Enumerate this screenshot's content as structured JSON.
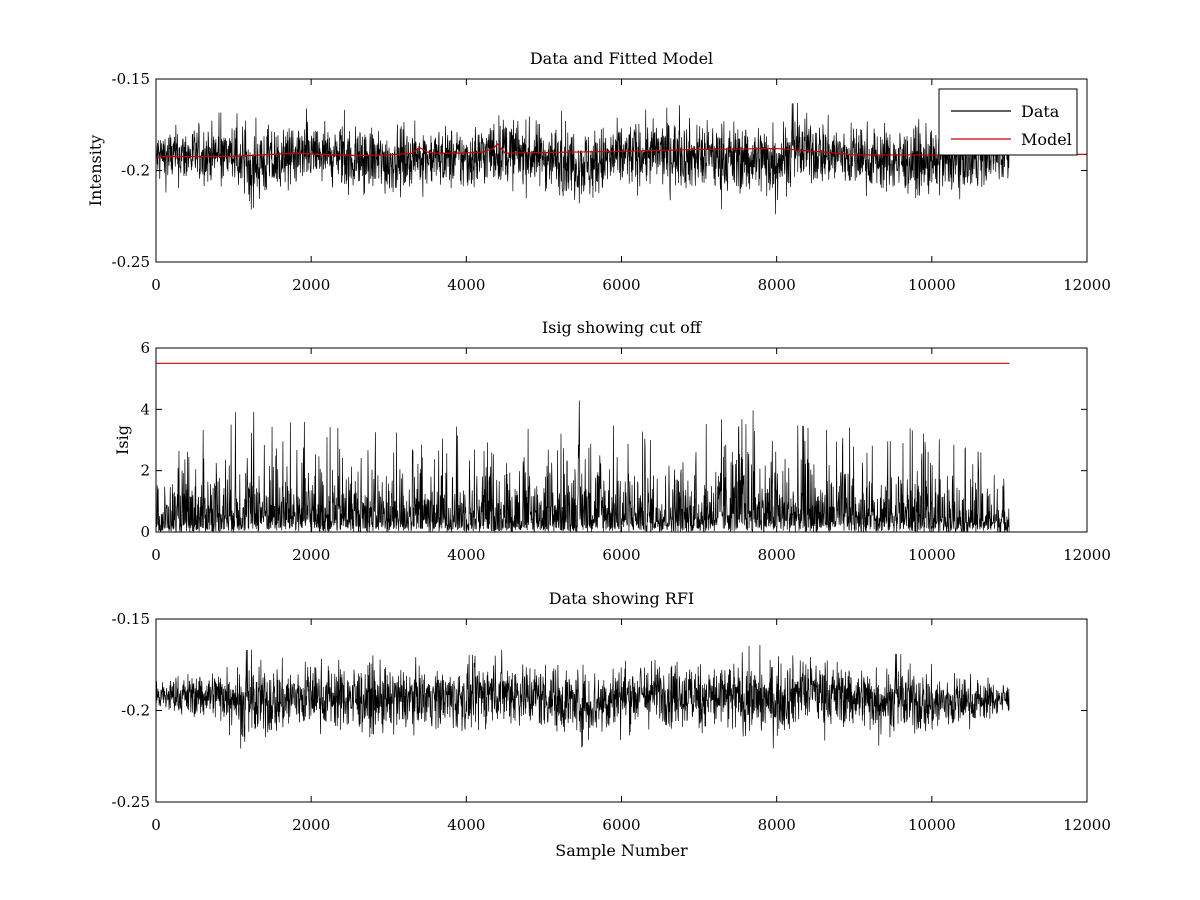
{
  "chart_data": [
    {
      "type": "line",
      "title": "Data and Fitted Model",
      "xlabel": "",
      "ylabel": "Intensity",
      "xlim": [
        0,
        12000
      ],
      "ylim": [
        -0.25,
        -0.15
      ],
      "x_ticks": [
        0,
        2000,
        4000,
        6000,
        8000,
        10000,
        12000
      ],
      "x_tick_labels": [
        "0",
        "2000",
        "4000",
        "6000",
        "8000",
        "10000",
        "12000"
      ],
      "y_ticks": [
        -0.15,
        -0.2,
        -0.25
      ],
      "y_tick_labels": [
        "-0.15",
        "-0.2",
        "-0.25"
      ],
      "y_inverted": true,
      "grid": false,
      "legend": {
        "placement": "top-right",
        "entries": [
          "Data",
          "Model"
        ]
      },
      "series": [
        {
          "name": "Data",
          "color": "#000000",
          "n_samples": 11000,
          "envelope_x": [
            0,
            1000,
            1100,
            2000,
            3000,
            3400,
            4000,
            4400,
            5000,
            5600,
            6000,
            6600,
            7000,
            8000,
            8300,
            9000,
            9500,
            10000,
            11000
          ],
          "envelope_min": [
            -0.215,
            -0.214,
            -0.228,
            -0.217,
            -0.222,
            -0.214,
            -0.22,
            -0.216,
            -0.218,
            -0.226,
            -0.218,
            -0.216,
            -0.22,
            -0.224,
            -0.215,
            -0.218,
            -0.22,
            -0.222,
            -0.21
          ],
          "envelope_max": [
            -0.17,
            -0.168,
            -0.167,
            -0.166,
            -0.168,
            -0.17,
            -0.168,
            -0.162,
            -0.167,
            -0.168,
            -0.166,
            -0.164,
            -0.165,
            -0.164,
            -0.163,
            -0.167,
            -0.169,
            -0.17,
            -0.173
          ]
        },
        {
          "name": "Model",
          "color": "#cc0000",
          "x": [
            0,
            1000,
            1500,
            1800,
            2100,
            2600,
            3000,
            3300,
            3400,
            3500,
            3600,
            3900,
            4200,
            4350,
            4400,
            4500,
            5000,
            6000,
            7000,
            8000,
            8500,
            9000,
            10000,
            11000,
            12000
          ],
          "y": [
            -0.1925,
            -0.1922,
            -0.1912,
            -0.1905,
            -0.1912,
            -0.1918,
            -0.1915,
            -0.1905,
            -0.1875,
            -0.19,
            -0.1905,
            -0.1905,
            -0.19,
            -0.188,
            -0.1855,
            -0.1905,
            -0.1902,
            -0.1895,
            -0.1885,
            -0.188,
            -0.1895,
            -0.1915,
            -0.1915,
            -0.1912,
            -0.1912
          ]
        }
      ]
    },
    {
      "type": "line",
      "title": "Isig showing cut off",
      "xlabel": "",
      "ylabel": "Isig",
      "xlim": [
        0,
        12000
      ],
      "ylim": [
        0,
        6
      ],
      "x_ticks": [
        0,
        2000,
        4000,
        6000,
        8000,
        10000,
        12000
      ],
      "x_tick_labels": [
        "0",
        "2000",
        "4000",
        "6000",
        "8000",
        "10000",
        "12000"
      ],
      "y_ticks": [
        0,
        2,
        4,
        6
      ],
      "y_tick_labels": [
        "0",
        "2",
        "4",
        "6"
      ],
      "grid": false,
      "series": [
        {
          "color": "#000000",
          "n_samples": 11000,
          "envelope_x": [
            0,
            1100,
            2000,
            3000,
            4000,
            5000,
            5600,
            6000,
            7000,
            7500,
            8000,
            9000,
            9700,
            10000,
            11000
          ],
          "envelope_min": [
            0,
            0,
            0,
            0,
            0,
            0,
            0,
            0,
            0,
            0,
            0,
            0,
            0,
            0,
            0
          ],
          "envelope_max": [
            2.0,
            4.4,
            3.5,
            3.2,
            3.6,
            3.3,
            4.6,
            3.4,
            3.3,
            4.5,
            3.5,
            3.4,
            3.4,
            3.1,
            2.3
          ]
        },
        {
          "color": "#cc0000",
          "x": [
            0,
            11000
          ],
          "y": [
            5.5,
            5.5
          ]
        }
      ]
    },
    {
      "type": "line",
      "title": "Data showing RFI",
      "xlabel": "Sample Number",
      "ylabel": "",
      "xlim": [
        0,
        12000
      ],
      "ylim": [
        -0.25,
        -0.15
      ],
      "x_ticks": [
        0,
        2000,
        4000,
        6000,
        8000,
        10000,
        12000
      ],
      "x_tick_labels": [
        "0",
        "2000",
        "4000",
        "6000",
        "8000",
        "10000",
        "12000"
      ],
      "y_ticks": [
        -0.15,
        -0.2,
        -0.25
      ],
      "y_tick_labels": [
        "-0.15",
        "-0.2",
        "-0.25"
      ],
      "y_inverted": true,
      "grid": false,
      "series": [
        {
          "color": "#000000",
          "n_samples": 11000,
          "envelope_x": [
            0,
            1000,
            1100,
            2000,
            3000,
            3400,
            4000,
            4400,
            5000,
            5600,
            6000,
            6600,
            7000,
            8000,
            8300,
            9000,
            9500,
            10000,
            11000
          ],
          "envelope_min": [
            -0.205,
            -0.214,
            -0.228,
            -0.217,
            -0.222,
            -0.214,
            -0.22,
            -0.216,
            -0.218,
            -0.226,
            -0.218,
            -0.216,
            -0.22,
            -0.224,
            -0.215,
            -0.218,
            -0.22,
            -0.222,
            -0.205
          ],
          "envelope_max": [
            -0.18,
            -0.168,
            -0.167,
            -0.166,
            -0.168,
            -0.17,
            -0.168,
            -0.162,
            -0.167,
            -0.168,
            -0.166,
            -0.164,
            -0.165,
            -0.164,
            -0.163,
            -0.167,
            -0.169,
            -0.17,
            -0.182
          ]
        }
      ]
    }
  ]
}
